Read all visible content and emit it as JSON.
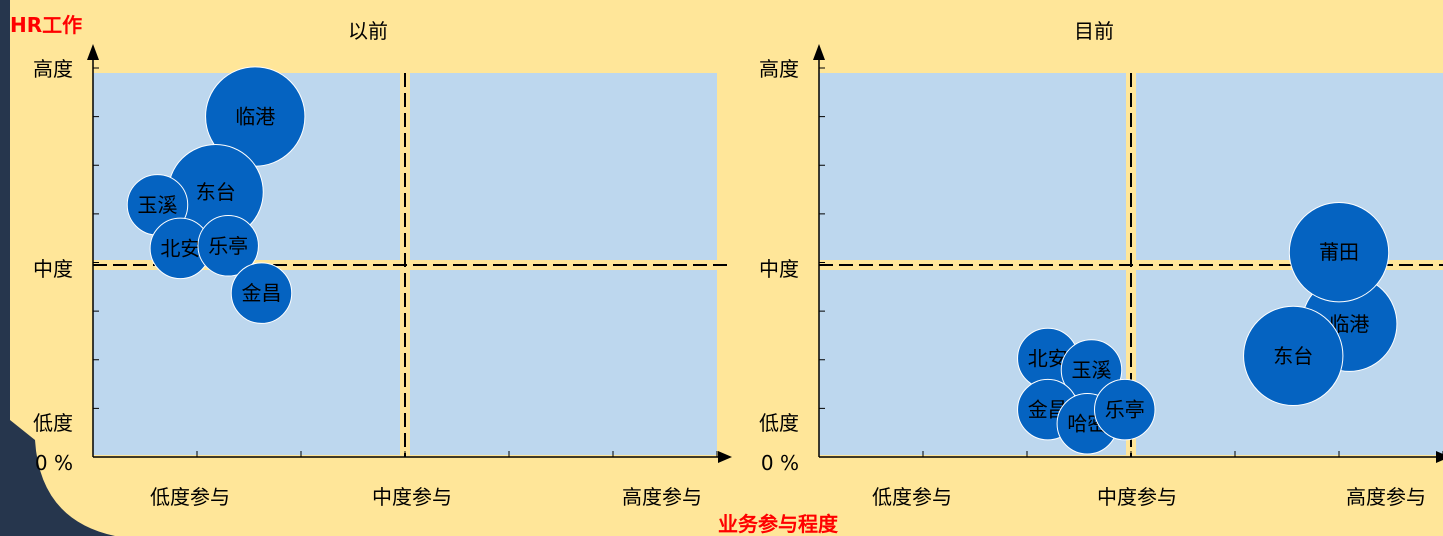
{
  "axis_title_y": "HR工作",
  "axis_title_x": "业务参与程度",
  "colors": {
    "background": "#FFE699",
    "quadrant": "#BDD7EE",
    "bubble": "#0563C1",
    "bubble_edge": "#FFFFFF",
    "accent": "#FF0000",
    "frame": "#26364D"
  },
  "chart_data": [
    {
      "type": "scatter",
      "title": "以前",
      "x_categories": [
        "低度参与",
        "中度参与",
        "高度参与"
      ],
      "y_categories": [
        "0 %",
        "低度",
        "中度",
        "高度"
      ],
      "xlim": [
        0,
        3
      ],
      "ylim": [
        0,
        3
      ],
      "divider": {
        "x": 1.5,
        "y": 1.5
      },
      "grid": false,
      "points": [
        {
          "label": "临港",
          "x": 0.78,
          "y": 2.66,
          "size": 0.23
        },
        {
          "label": "东台",
          "x": 0.59,
          "y": 2.07,
          "size": 0.22
        },
        {
          "label": "玉溪",
          "x": 0.31,
          "y": 1.97,
          "size": 0.14
        },
        {
          "label": "北安",
          "x": 0.42,
          "y": 1.63,
          "size": 0.14
        },
        {
          "label": "乐亭",
          "x": 0.65,
          "y": 1.65,
          "size": 0.14
        },
        {
          "label": "金昌",
          "x": 0.81,
          "y": 1.28,
          "size": 0.14
        }
      ]
    },
    {
      "type": "scatter",
      "title": "目前",
      "x_categories": [
        "低度参与",
        "中度参与",
        "高度参与"
      ],
      "y_categories": [
        "0 %",
        "低度",
        "中度",
        "高度"
      ],
      "xlim": [
        0,
        3
      ],
      "ylim": [
        0,
        3
      ],
      "divider": {
        "x": 1.5,
        "y": 1.5
      },
      "grid": false,
      "points": [
        {
          "label": "临港",
          "x": 2.55,
          "y": 1.04,
          "size": 0.22
        },
        {
          "label": "莆田",
          "x": 2.5,
          "y": 1.6,
          "size": 0.23
        },
        {
          "label": "东台",
          "x": 2.28,
          "y": 0.79,
          "size": 0.23
        },
        {
          "label": "北安",
          "x": 1.1,
          "y": 0.77,
          "size": 0.14
        },
        {
          "label": "玉溪",
          "x": 1.31,
          "y": 0.68,
          "size": 0.14
        },
        {
          "label": "金昌",
          "x": 1.1,
          "y": 0.37,
          "size": 0.14
        },
        {
          "label": "哈密",
          "x": 1.29,
          "y": 0.26,
          "size": 0.14
        },
        {
          "label": "乐亭",
          "x": 1.47,
          "y": 0.37,
          "size": 0.14
        }
      ]
    }
  ]
}
